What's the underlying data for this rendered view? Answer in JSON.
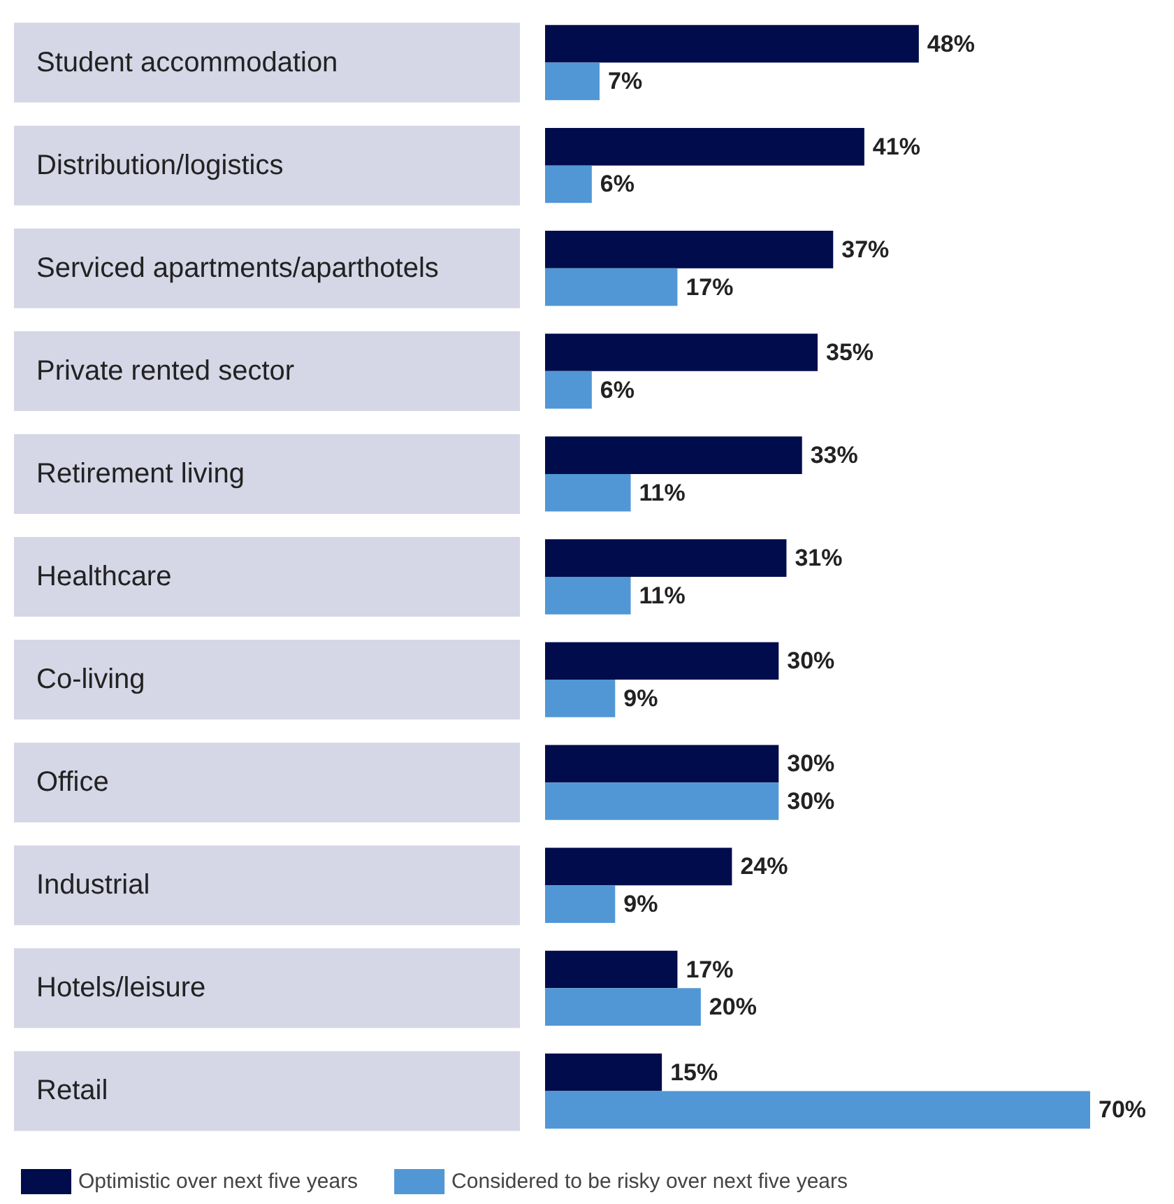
{
  "chart_data": {
    "type": "bar",
    "orientation": "horizontal",
    "categories": [
      "Student accommodation",
      "Distribution/logistics",
      "Serviced apartments/aparthotels",
      "Private rented sector",
      "Retirement living",
      "Healthcare",
      "Co-living",
      "Office",
      "Industrial",
      "Hotels/leisure",
      "Retail"
    ],
    "series": [
      {
        "name": "Optimistic over next five years",
        "color": "#000c4b",
        "values": [
          48,
          41,
          37,
          35,
          33,
          31,
          30,
          30,
          24,
          17,
          15
        ],
        "value_labels": [
          "48%",
          "41%",
          "37%",
          "35%",
          "33%",
          "31%",
          "30%",
          "30%",
          "24%",
          "17%",
          "15%"
        ]
      },
      {
        "name": "Considered to be risky over next five years",
        "color": "#5197d5",
        "values": [
          7,
          6,
          17,
          6,
          11,
          11,
          9,
          30,
          9,
          20,
          70
        ],
        "value_labels": [
          "7%",
          "6%",
          "17%",
          "6%",
          "11%",
          "11%",
          "9%",
          "30%",
          "9%",
          "20%",
          "70%"
        ]
      }
    ],
    "legend": "bottom left"
  }
}
